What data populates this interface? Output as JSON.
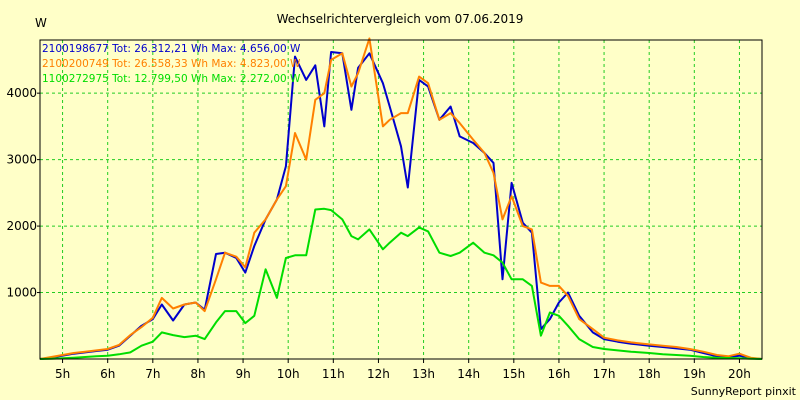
{
  "chart_data": {
    "type": "line",
    "title": "Wechselrichtervergleich vom 07.06.2019",
    "ylabel": "W",
    "xlabel": "",
    "footer": "SunnyReport pinxit",
    "ylim": [
      0,
      4800
    ],
    "xlim": [
      4.5,
      20.5
    ],
    "grid": true,
    "legend_position": "top-left",
    "yticks": [
      {
        "value": 1000,
        "label": "1000"
      },
      {
        "value": 2000,
        "label": "2000"
      },
      {
        "value": 3000,
        "label": "3000"
      },
      {
        "value": 4000,
        "label": "4000"
      }
    ],
    "xticks": [
      {
        "value": 5,
        "label": "5h"
      },
      {
        "value": 6,
        "label": "6h"
      },
      {
        "value": 7,
        "label": "7h"
      },
      {
        "value": 8,
        "label": "8h"
      },
      {
        "value": 9,
        "label": "9h"
      },
      {
        "value": 10,
        "label": "10h"
      },
      {
        "value": 11,
        "label": "11h"
      },
      {
        "value": 12,
        "label": "12h"
      },
      {
        "value": 13,
        "label": "13h"
      },
      {
        "value": 14,
        "label": "14h"
      },
      {
        "value": 15,
        "label": "15h"
      },
      {
        "value": 16,
        "label": "16h"
      },
      {
        "value": 17,
        "label": "17h"
      },
      {
        "value": 18,
        "label": "18h"
      },
      {
        "value": 19,
        "label": "19h"
      },
      {
        "value": 20,
        "label": "20h"
      }
    ],
    "series": [
      {
        "name": "2100198677",
        "legend": "2100198677 Tot: 26.312,21 Wh Max: 4.656,00 W",
        "color": "#0000cc",
        "points": [
          [
            4.5,
            0
          ],
          [
            4.75,
            20
          ],
          [
            5.0,
            50
          ],
          [
            5.25,
            80
          ],
          [
            5.5,
            100
          ],
          [
            5.75,
            120
          ],
          [
            6.0,
            140
          ],
          [
            6.25,
            200
          ],
          [
            6.5,
            350
          ],
          [
            6.75,
            500
          ],
          [
            7.0,
            600
          ],
          [
            7.2,
            820
          ],
          [
            7.45,
            580
          ],
          [
            7.7,
            820
          ],
          [
            7.95,
            850
          ],
          [
            8.15,
            740
          ],
          [
            8.4,
            1580
          ],
          [
            8.6,
            1600
          ],
          [
            8.85,
            1520
          ],
          [
            9.05,
            1300
          ],
          [
            9.25,
            1700
          ],
          [
            9.5,
            2100
          ],
          [
            9.75,
            2400
          ],
          [
            9.95,
            2900
          ],
          [
            10.15,
            4550
          ],
          [
            10.4,
            4200
          ],
          [
            10.6,
            4420
          ],
          [
            10.8,
            3500
          ],
          [
            10.95,
            4620
          ],
          [
            11.2,
            4600
          ],
          [
            11.4,
            3750
          ],
          [
            11.55,
            4380
          ],
          [
            11.8,
            4600
          ],
          [
            12.1,
            4150
          ],
          [
            12.25,
            3800
          ],
          [
            12.5,
            3200
          ],
          [
            12.65,
            2580
          ],
          [
            12.9,
            4200
          ],
          [
            13.1,
            4100
          ],
          [
            13.35,
            3600
          ],
          [
            13.6,
            3800
          ],
          [
            13.8,
            3350
          ],
          [
            14.1,
            3250
          ],
          [
            14.35,
            3100
          ],
          [
            14.55,
            2950
          ],
          [
            14.75,
            1200
          ],
          [
            14.95,
            2650
          ],
          [
            15.2,
            2050
          ],
          [
            15.4,
            1900
          ],
          [
            15.6,
            450
          ],
          [
            15.8,
            600
          ],
          [
            16.0,
            850
          ],
          [
            16.2,
            1000
          ],
          [
            16.45,
            650
          ],
          [
            16.75,
            400
          ],
          [
            17.0,
            300
          ],
          [
            17.3,
            260
          ],
          [
            17.6,
            230
          ],
          [
            18.0,
            200
          ],
          [
            18.3,
            180
          ],
          [
            18.6,
            160
          ],
          [
            18.9,
            140
          ],
          [
            19.2,
            90
          ],
          [
            19.5,
            40
          ],
          [
            19.75,
            30
          ],
          [
            20.0,
            50
          ],
          [
            20.25,
            10
          ],
          [
            20.5,
            0
          ]
        ]
      },
      {
        "name": "2100200749",
        "legend": "2100200749 Tot: 26.558,33 Wh Max: 4.823,00 W",
        "color": "#ff8000",
        "points": [
          [
            4.5,
            0
          ],
          [
            4.75,
            30
          ],
          [
            5.0,
            60
          ],
          [
            5.25,
            90
          ],
          [
            5.5,
            110
          ],
          [
            5.75,
            130
          ],
          [
            6.0,
            150
          ],
          [
            6.25,
            210
          ],
          [
            6.5,
            360
          ],
          [
            6.75,
            480
          ],
          [
            7.0,
            620
          ],
          [
            7.2,
            920
          ],
          [
            7.45,
            760
          ],
          [
            7.7,
            820
          ],
          [
            7.95,
            850
          ],
          [
            8.15,
            720
          ],
          [
            8.4,
            1200
          ],
          [
            8.6,
            1600
          ],
          [
            8.85,
            1540
          ],
          [
            9.05,
            1380
          ],
          [
            9.25,
            1900
          ],
          [
            9.5,
            2100
          ],
          [
            9.75,
            2400
          ],
          [
            9.95,
            2600
          ],
          [
            10.15,
            3400
          ],
          [
            10.4,
            3000
          ],
          [
            10.6,
            3900
          ],
          [
            10.8,
            4000
          ],
          [
            10.95,
            4500
          ],
          [
            11.2,
            4600
          ],
          [
            11.4,
            4100
          ],
          [
            11.55,
            4300
          ],
          [
            11.8,
            4823
          ],
          [
            12.1,
            3500
          ],
          [
            12.25,
            3600
          ],
          [
            12.5,
            3700
          ],
          [
            12.65,
            3700
          ],
          [
            12.9,
            4250
          ],
          [
            13.1,
            4150
          ],
          [
            13.35,
            3600
          ],
          [
            13.6,
            3700
          ],
          [
            13.8,
            3550
          ],
          [
            14.1,
            3300
          ],
          [
            14.35,
            3100
          ],
          [
            14.55,
            2800
          ],
          [
            14.75,
            2100
          ],
          [
            14.95,
            2450
          ],
          [
            15.2,
            2000
          ],
          [
            15.4,
            1950
          ],
          [
            15.6,
            1150
          ],
          [
            15.8,
            1100
          ],
          [
            16.0,
            1100
          ],
          [
            16.2,
            950
          ],
          [
            16.45,
            600
          ],
          [
            16.75,
            450
          ],
          [
            17.0,
            320
          ],
          [
            17.3,
            280
          ],
          [
            17.6,
            250
          ],
          [
            18.0,
            220
          ],
          [
            18.3,
            200
          ],
          [
            18.6,
            180
          ],
          [
            18.9,
            150
          ],
          [
            19.2,
            110
          ],
          [
            19.5,
            60
          ],
          [
            19.75,
            40
          ],
          [
            20.0,
            80
          ],
          [
            20.25,
            20
          ],
          [
            20.5,
            0
          ]
        ]
      },
      {
        "name": "1100272975",
        "legend": "1100272975 Tot: 12.799,50 Wh Max: 2.272,00 W",
        "color": "#00dd00",
        "points": [
          [
            4.5,
            0
          ],
          [
            4.75,
            5
          ],
          [
            5.0,
            10
          ],
          [
            5.25,
            20
          ],
          [
            5.5,
            30
          ],
          [
            5.75,
            40
          ],
          [
            6.0,
            50
          ],
          [
            6.25,
            70
          ],
          [
            6.5,
            100
          ],
          [
            6.75,
            200
          ],
          [
            7.0,
            260
          ],
          [
            7.2,
            400
          ],
          [
            7.45,
            360
          ],
          [
            7.7,
            330
          ],
          [
            7.95,
            350
          ],
          [
            8.15,
            300
          ],
          [
            8.4,
            550
          ],
          [
            8.6,
            720
          ],
          [
            8.85,
            720
          ],
          [
            9.05,
            540
          ],
          [
            9.25,
            650
          ],
          [
            9.5,
            1350
          ],
          [
            9.75,
            920
          ],
          [
            9.95,
            1520
          ],
          [
            10.15,
            1560
          ],
          [
            10.4,
            1560
          ],
          [
            10.6,
            2250
          ],
          [
            10.8,
            2260
          ],
          [
            10.95,
            2240
          ],
          [
            11.2,
            2100
          ],
          [
            11.4,
            1850
          ],
          [
            11.55,
            1800
          ],
          [
            11.8,
            1950
          ],
          [
            12.1,
            1650
          ],
          [
            12.25,
            1750
          ],
          [
            12.5,
            1900
          ],
          [
            12.65,
            1850
          ],
          [
            12.9,
            1980
          ],
          [
            13.1,
            1920
          ],
          [
            13.35,
            1600
          ],
          [
            13.6,
            1550
          ],
          [
            13.8,
            1600
          ],
          [
            14.1,
            1750
          ],
          [
            14.35,
            1600
          ],
          [
            14.55,
            1560
          ],
          [
            14.75,
            1450
          ],
          [
            14.95,
            1200
          ],
          [
            15.2,
            1200
          ],
          [
            15.4,
            1100
          ],
          [
            15.6,
            350
          ],
          [
            15.8,
            700
          ],
          [
            16.0,
            650
          ],
          [
            16.2,
            500
          ],
          [
            16.45,
            300
          ],
          [
            16.75,
            180
          ],
          [
            17.0,
            150
          ],
          [
            17.3,
            130
          ],
          [
            17.6,
            110
          ],
          [
            18.0,
            90
          ],
          [
            18.3,
            70
          ],
          [
            18.6,
            60
          ],
          [
            18.9,
            50
          ],
          [
            19.2,
            30
          ],
          [
            19.5,
            20
          ],
          [
            19.75,
            15
          ],
          [
            20.0,
            10
          ],
          [
            20.25,
            5
          ],
          [
            20.5,
            0
          ]
        ]
      }
    ]
  }
}
